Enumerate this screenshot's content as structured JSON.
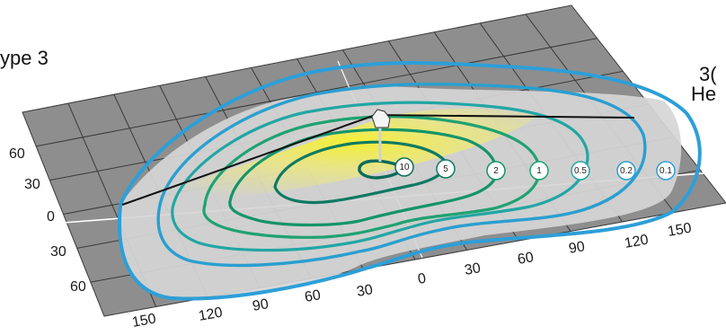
{
  "text": {
    "left_label": "ype 3",
    "right_label_line1": "3(",
    "right_label_line2": "He"
  },
  "axis": {
    "y_ticks": [
      "60",
      "30",
      "0",
      "30",
      "60"
    ],
    "x_ticks": [
      "150",
      "120",
      "90",
      "60",
      "30",
      "0",
      "30",
      "60",
      "90",
      "120",
      "150"
    ]
  },
  "contours": [
    {
      "label": "10",
      "color": "#0c6b5a"
    },
    {
      "label": "5",
      "color": "#0f7a62"
    },
    {
      "label": "2",
      "color": "#14946a"
    },
    {
      "label": "1",
      "color": "#1fa272"
    },
    {
      "label": "0.5",
      "color": "#22a6a4"
    },
    {
      "label": "0.2",
      "color": "#2a9fd0"
    },
    {
      "label": "0.1",
      "color": "#2d9fd8"
    }
  ],
  "colors": {
    "grid_fill": "#8e8e8e",
    "grid_line": "#3a3a3a",
    "plume_fill": "#d9d9d9",
    "highlight": "#f2ee3a"
  }
}
